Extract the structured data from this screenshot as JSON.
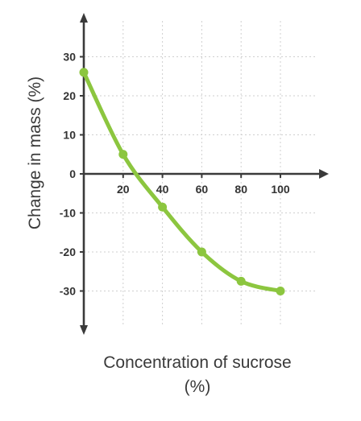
{
  "chart_data": {
    "type": "line",
    "title": "",
    "xlabel_lines": [
      "Concentration of sucrose",
      "(%)"
    ],
    "ylabel": "Change in mass (%)",
    "x_ticks": [
      20,
      40,
      60,
      80,
      100
    ],
    "y_ticks": [
      -30,
      -20,
      -10,
      0,
      10,
      20,
      30
    ],
    "xlim": [
      0,
      100
    ],
    "ylim": [
      -40,
      40
    ],
    "grid": true,
    "line_color": "#8cc63f",
    "axis_color": "#3a3a3a",
    "series": [
      {
        "x": [
          0,
          20,
          40,
          60,
          80,
          100
        ],
        "y": [
          26,
          5,
          -8.5,
          -20,
          -27.5,
          -30
        ]
      }
    ]
  }
}
